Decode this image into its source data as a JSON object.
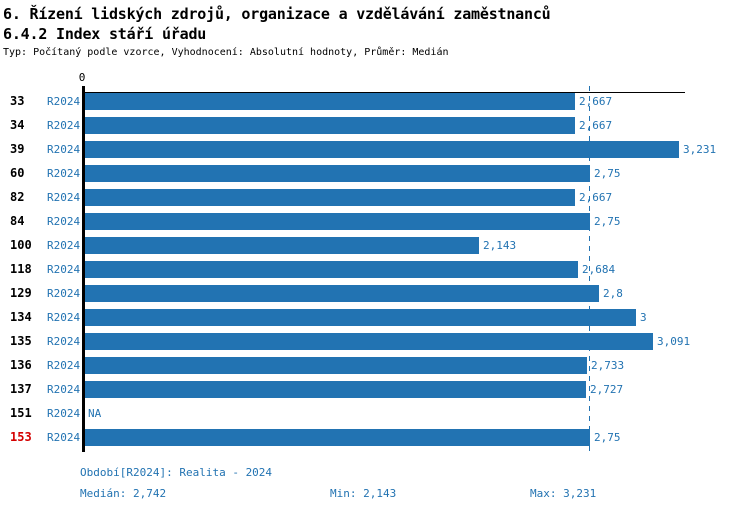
{
  "header": {
    "title": "6. Řízení lidských zdrojů, organizace a vzdělávání zaměstnanců",
    "subtitle": "6.4.2 Index stáří úřadu",
    "meta": "Typ: Počítaný podle vzorce, Vyhodnocení: Absolutní hodnoty, Průměr: Medián"
  },
  "chart_data": {
    "type": "bar",
    "orientation": "horizontal",
    "title": "6.4.2 Index stáří úřadu",
    "x_axis_zero_label": "0",
    "xlim": [
      0,
      3.266
    ],
    "grid": false,
    "median_value": 2.742,
    "highlighted_category": "153",
    "categories": [
      "33",
      "34",
      "39",
      "60",
      "82",
      "84",
      "100",
      "118",
      "129",
      "134",
      "135",
      "136",
      "137",
      "151",
      "153"
    ],
    "series": [
      {
        "name": "R2024",
        "values": [
          2.667,
          2.667,
          3.231,
          2.75,
          2.667,
          2.75,
          2.143,
          2.684,
          2.8,
          3,
          3.091,
          2.733,
          2.727,
          null,
          2.75
        ]
      }
    ],
    "rows": [
      {
        "id": "33",
        "period": "R2024",
        "value": 2.667,
        "label": "2,667",
        "highlight": false
      },
      {
        "id": "34",
        "period": "R2024",
        "value": 2.667,
        "label": "2,667",
        "highlight": false
      },
      {
        "id": "39",
        "period": "R2024",
        "value": 3.231,
        "label": "3,231",
        "highlight": false
      },
      {
        "id": "60",
        "period": "R2024",
        "value": 2.75,
        "label": "2,75",
        "highlight": false
      },
      {
        "id": "82",
        "period": "R2024",
        "value": 2.667,
        "label": "2,667",
        "highlight": false
      },
      {
        "id": "84",
        "period": "R2024",
        "value": 2.75,
        "label": "2,75",
        "highlight": false
      },
      {
        "id": "100",
        "period": "R2024",
        "value": 2.143,
        "label": "2,143",
        "highlight": false
      },
      {
        "id": "118",
        "period": "R2024",
        "value": 2.684,
        "label": "2,684",
        "highlight": false
      },
      {
        "id": "129",
        "period": "R2024",
        "value": 2.8,
        "label": "2,8",
        "highlight": false
      },
      {
        "id": "134",
        "period": "R2024",
        "value": 3,
        "label": "3",
        "highlight": false
      },
      {
        "id": "135",
        "period": "R2024",
        "value": 3.091,
        "label": "3,091",
        "highlight": false
      },
      {
        "id": "136",
        "period": "R2024",
        "value": 2.733,
        "label": "2,733",
        "highlight": false
      },
      {
        "id": "137",
        "period": "R2024",
        "value": 2.727,
        "label": "2,727",
        "highlight": false
      },
      {
        "id": "151",
        "period": "R2024",
        "value": null,
        "label": "NA",
        "highlight": false
      },
      {
        "id": "153",
        "period": "R2024",
        "value": 2.75,
        "label": "2,75",
        "highlight": true
      }
    ]
  },
  "footer": {
    "period_line": "Období[R2024]: Realita - 2024",
    "median": "Medián: 2,742",
    "min": "Min: 2,143",
    "max": "Max: 3,231"
  },
  "colors": {
    "bar": "#2273b2",
    "text_blue": "#2273b2",
    "highlight_red": "#d40000",
    "axis": "#000000"
  }
}
